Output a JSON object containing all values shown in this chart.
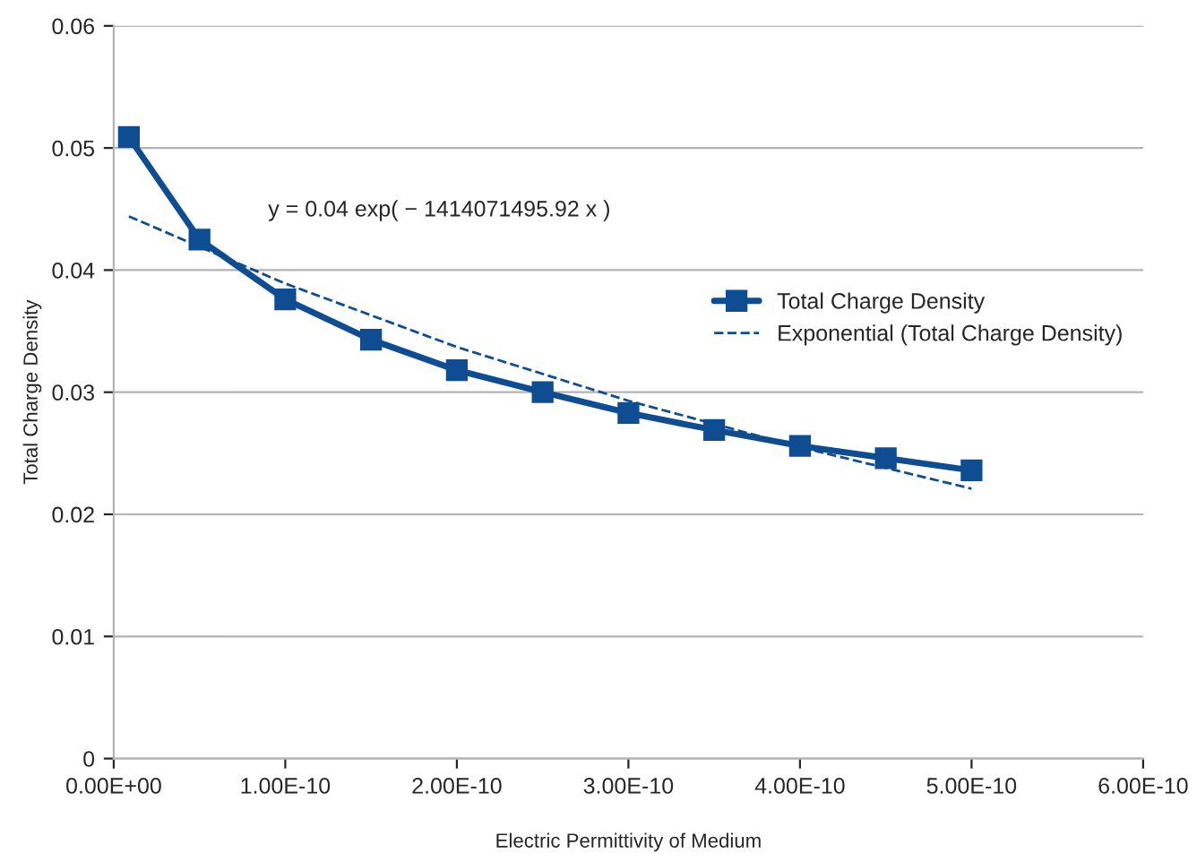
{
  "chart_data": {
    "type": "line",
    "xlabel": "Electric Permittivity of Medium",
    "ylabel": "Total Charge Density",
    "xlim": [
      0,
      6e-10
    ],
    "ylim": [
      0,
      0.06
    ],
    "xticks": [
      {
        "value": 0,
        "label": "0.00E+00"
      },
      {
        "value": 1e-10,
        "label": "1.00E-10"
      },
      {
        "value": 2e-10,
        "label": "2.00E-10"
      },
      {
        "value": 3e-10,
        "label": "3.00E-10"
      },
      {
        "value": 4e-10,
        "label": "4.00E-10"
      },
      {
        "value": 5e-10,
        "label": "5.00E-10"
      },
      {
        "value": 6e-10,
        "label": "6.00E-10"
      }
    ],
    "yticks": [
      0,
      0.01,
      0.02,
      0.03,
      0.04,
      0.05,
      0.06
    ],
    "grid": "y",
    "legend": "right",
    "annotations": [
      "y = 0.04 exp( − 1414071495.92 x )"
    ],
    "series": [
      {
        "name": "Total Charge Density",
        "color": "#0e4d92",
        "marker": "square",
        "line_style": "solid",
        "x": [
          8.85e-12,
          5e-11,
          1e-10,
          1.5e-10,
          2e-10,
          2.5e-10,
          3e-10,
          3.5e-10,
          4e-10,
          4.5e-10,
          5e-10
        ],
        "values": [
          0.0509,
          0.0425,
          0.0376,
          0.0343,
          0.0318,
          0.03,
          0.0283,
          0.0269,
          0.0256,
          0.0246,
          0.0236
        ]
      },
      {
        "name": "Exponential (Total Charge Density)",
        "color": "#0e4d92",
        "marker": "none",
        "line_style": "dashed",
        "x": [
          8.85e-12,
          1e-10,
          2e-10,
          3e-10,
          4e-10,
          5e-10
        ],
        "values": [
          0.0444,
          0.0389,
          0.0337,
          0.0293,
          0.0255,
          0.0221
        ]
      }
    ]
  }
}
